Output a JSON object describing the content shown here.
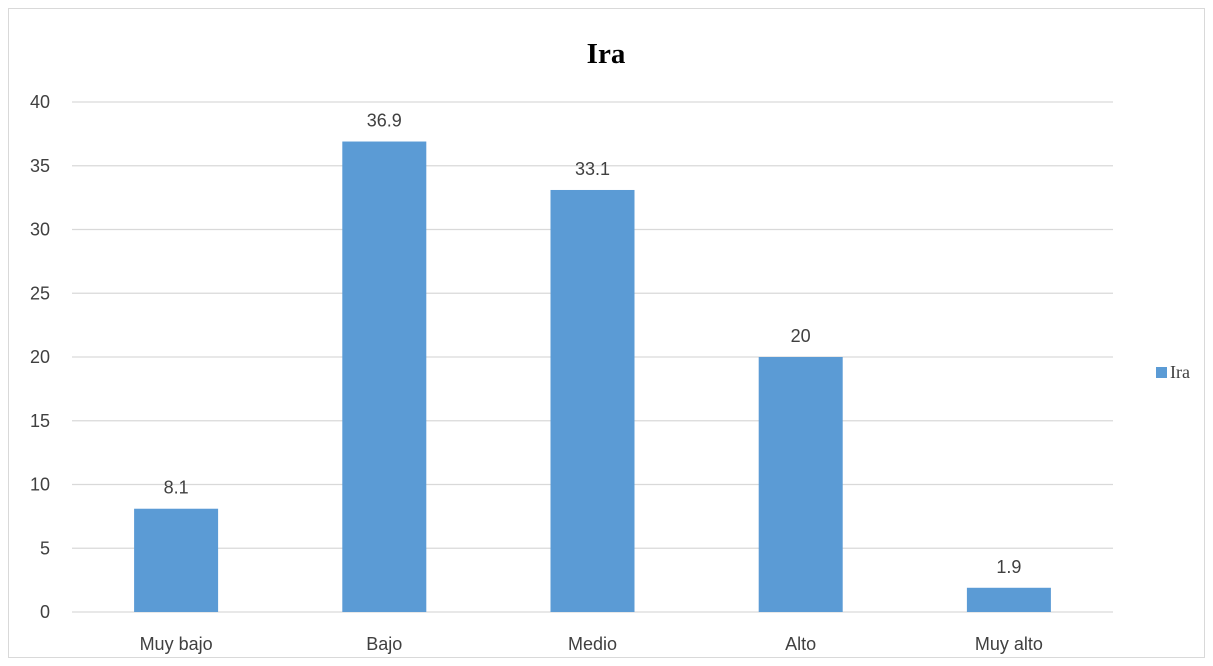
{
  "chart_data": {
    "type": "bar",
    "title": "Ira",
    "categories": [
      "Muy bajo",
      "Bajo",
      "Medio",
      "Alto",
      "Muy alto"
    ],
    "series": [
      {
        "name": "Ira",
        "values": [
          8.1,
          36.9,
          33.1,
          20,
          1.9
        ],
        "color": "#5b9bd5"
      }
    ],
    "data_labels": [
      "8.1",
      "36.9",
      "33.1",
      "20",
      "1.9"
    ],
    "y_ticks": [
      0,
      5,
      10,
      15,
      20,
      25,
      30,
      35,
      40
    ],
    "ylim": [
      0,
      40
    ],
    "xlabel": "",
    "ylabel": "",
    "grid": true,
    "legend": "right"
  }
}
